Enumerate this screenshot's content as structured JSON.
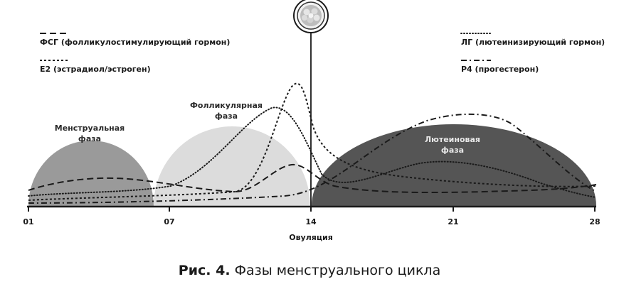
{
  "legend": {
    "fsh": "ФСГ (фолликулостимулирующий гормон)",
    "e2": "Е2 (эстрадиол/эстроген)",
    "lh": "ЛГ (лютеинизирующий гормон)",
    "p4": "Р4 (прогестерон)"
  },
  "phases": {
    "menstrual_line1": "Менструальная",
    "menstrual_line2": "фаза",
    "follicular_line1": "Фолликулярная",
    "follicular_line2": "фаза",
    "luteal_line1": "Лютеиновая",
    "luteal_line2": "фаза"
  },
  "axis": {
    "ticks": [
      "01",
      "07",
      "14",
      "21",
      "28"
    ],
    "ovulation_label": "Овуляция"
  },
  "caption": {
    "prefix": "Рис. 4.",
    "text": " Фазы менструального цикла"
  },
  "colors": {
    "menstrual_phase": "#9a9a9a",
    "follicular_phase": "#dcdcdc",
    "luteal_phase": "#555555",
    "lines": "#1a1a1a"
  },
  "icons": {
    "ovum": "egg-cell-icon"
  }
}
